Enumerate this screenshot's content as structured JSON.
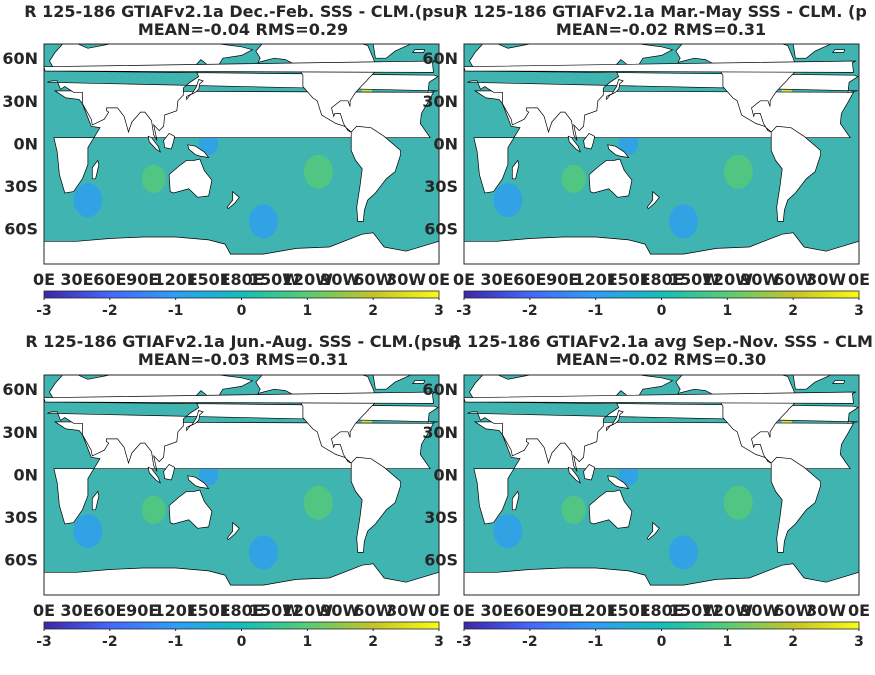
{
  "chart_data": [
    {
      "type": "heatmap",
      "title_line1": "R 125-186 GTIAFv2.1a  Dec.-Feb. SSS - CLM.(psu)",
      "title_line2": "MEAN=-0.04   RMS=0.29",
      "yticks": [
        "60N",
        "30N",
        "0N",
        "30S",
        "60S"
      ],
      "xticks": [
        "0E",
        "30E",
        "60E",
        "90E",
        "120E",
        "150E",
        "180E",
        "150W",
        "120W",
        "90W",
        "60W",
        "30W",
        "0E"
      ],
      "colorbar": {
        "range": [
          -3,
          3
        ],
        "ticks": [
          "-3",
          "-2",
          "-1",
          "0",
          "1",
          "2",
          "3"
        ]
      }
    },
    {
      "type": "heatmap",
      "title_line1": "R 125-186 GTIAFv2.1a Mar.-May SSS - CLM. (p",
      "title_line2": "MEAN=-0.02   RMS=0.31",
      "yticks": [
        "60N",
        "30N",
        "0N",
        "30S",
        "60S"
      ],
      "xticks": [
        "0E",
        "30E",
        "60E",
        "90E",
        "120E",
        "150E",
        "180E",
        "150W",
        "120W",
        "90W",
        "60W",
        "30W",
        "0E"
      ],
      "colorbar": {
        "range": [
          -3,
          3
        ],
        "ticks": [
          "-3",
          "-2",
          "-1",
          "0",
          "1",
          "2",
          "3"
        ]
      }
    },
    {
      "type": "heatmap",
      "title_line1": "R 125-186 GTIAFv2.1a Jun.-Aug. SSS - CLM.(psu)",
      "title_line2": "MEAN=-0.03   RMS=0.31",
      "yticks": [
        "60N",
        "30N",
        "0N",
        "30S",
        "60S"
      ],
      "xticks": [
        "0E",
        "30E",
        "60E",
        "90E",
        "120E",
        "150E",
        "180E",
        "150W",
        "120W",
        "90W",
        "60W",
        "30W",
        "0E"
      ],
      "colorbar": {
        "range": [
          -3,
          3
        ],
        "ticks": [
          "-3",
          "-2",
          "-1",
          "0",
          "1",
          "2",
          "3"
        ]
      }
    },
    {
      "type": "heatmap",
      "title_line1": "R 125-186 GTIAFv2.1a avg Sep.-Nov. SSS - CLM",
      "title_line2": "MEAN=-0.02   RMS=0.30",
      "yticks": [
        "60N",
        "30N",
        "0N",
        "30S",
        "60S"
      ],
      "xticks": [
        "0E",
        "30E",
        "60E",
        "90E",
        "120E",
        "150E",
        "180E",
        "150W",
        "120W",
        "90W",
        "60W",
        "30W",
        "0E"
      ],
      "colorbar": {
        "range": [
          -3,
          3
        ],
        "ticks": [
          "-3",
          "-2",
          "-1",
          "0",
          "1",
          "2",
          "3"
        ]
      }
    }
  ],
  "colors": {
    "ocean": "#3fb4b0",
    "land": "#ffffff",
    "colormap": [
      "#3e26a8",
      "#4367fd",
      "#2e9ef7",
      "#12beb9",
      "#58cc74",
      "#c4c329",
      "#f9fb15"
    ]
  }
}
